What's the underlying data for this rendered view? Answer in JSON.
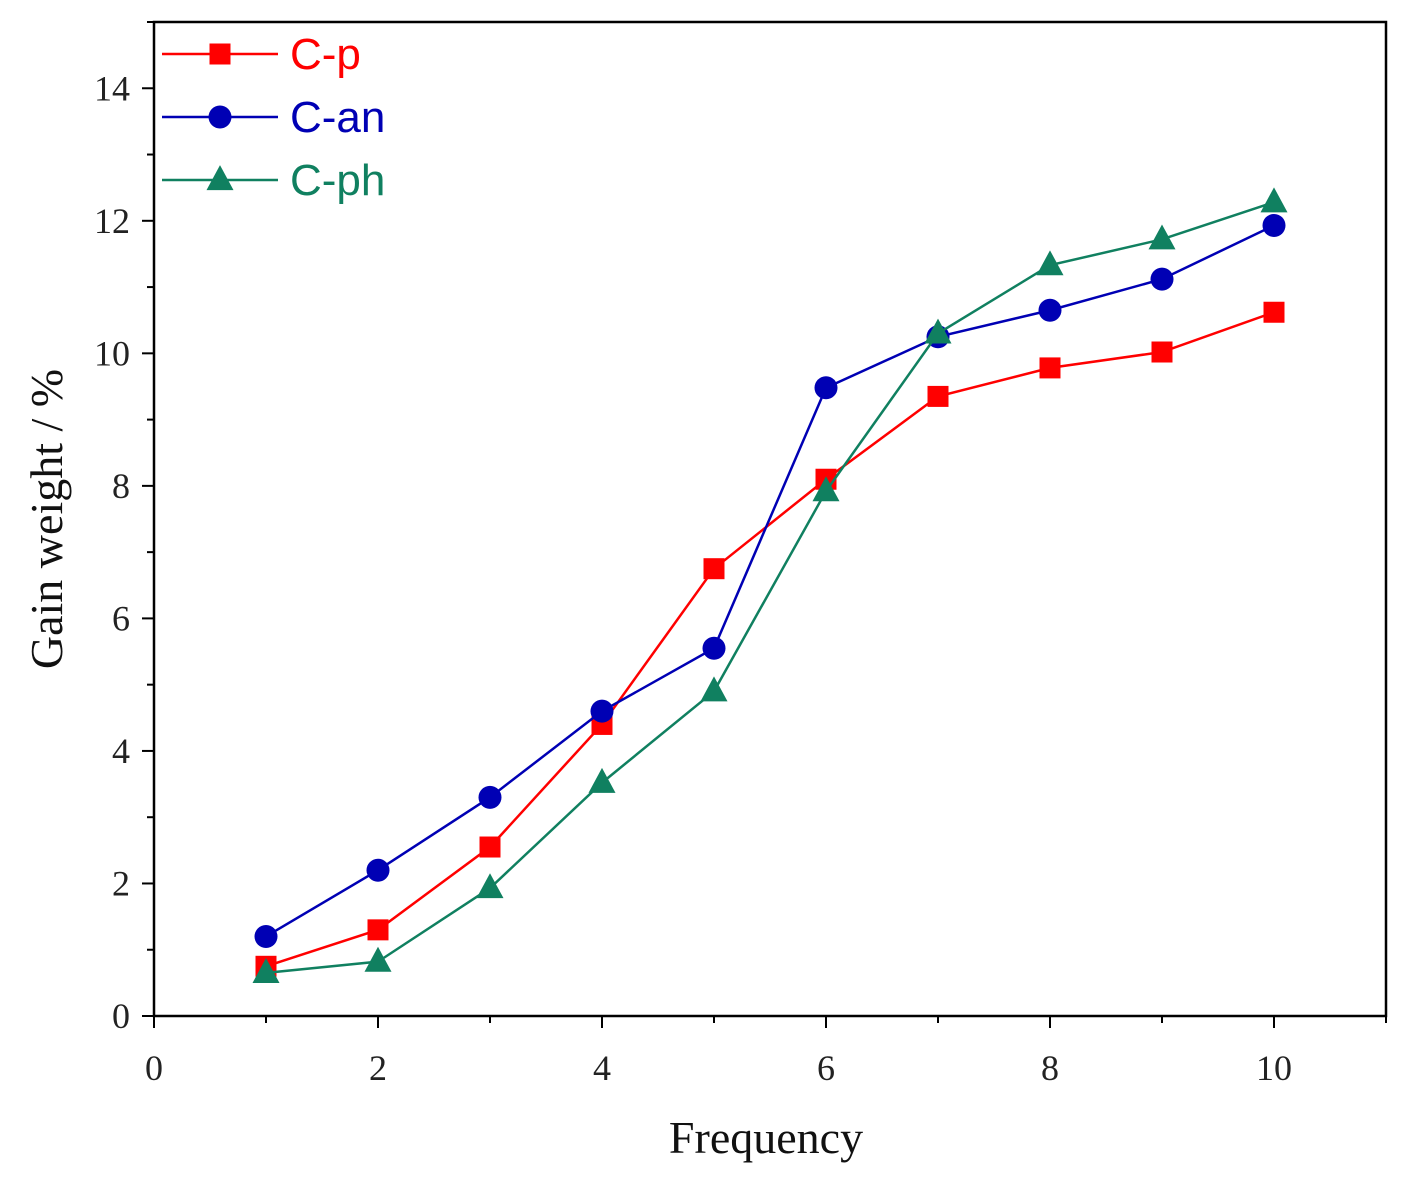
{
  "chart_data": {
    "type": "line",
    "title": "",
    "xlabel": "Frequency",
    "ylabel": "Gain weight / %",
    "xlim": [
      0,
      11
    ],
    "ylim": [
      0,
      15
    ],
    "xticks": [
      0,
      2,
      4,
      6,
      8,
      10
    ],
    "yticks": [
      0,
      2,
      4,
      6,
      8,
      10,
      12,
      14
    ],
    "xtick_labels": [
      "0",
      "2",
      "4",
      "6",
      "8",
      "10"
    ],
    "ytick_labels": [
      "0",
      "2",
      "4",
      "6",
      "8",
      "10",
      "12",
      "14"
    ],
    "grid": false,
    "legend_position": "top-left",
    "x": [
      1,
      2,
      3,
      4,
      5,
      6,
      7,
      8,
      9,
      10
    ],
    "series": [
      {
        "name": "C-p",
        "color": "#ff0000",
        "marker": "square",
        "values": [
          0.75,
          1.3,
          2.55,
          4.4,
          6.75,
          8.1,
          9.35,
          9.78,
          10.02,
          10.62
        ]
      },
      {
        "name": "C-an",
        "color": "#0000b4",
        "marker": "circle",
        "values": [
          1.2,
          2.2,
          3.3,
          4.6,
          5.55,
          9.48,
          10.25,
          10.65,
          11.12,
          11.93
        ]
      },
      {
        "name": "C-ph",
        "color": "#108060",
        "marker": "triangle",
        "values": [
          0.65,
          0.82,
          1.93,
          3.52,
          4.9,
          7.92,
          10.3,
          11.33,
          11.72,
          12.28
        ]
      }
    ]
  }
}
